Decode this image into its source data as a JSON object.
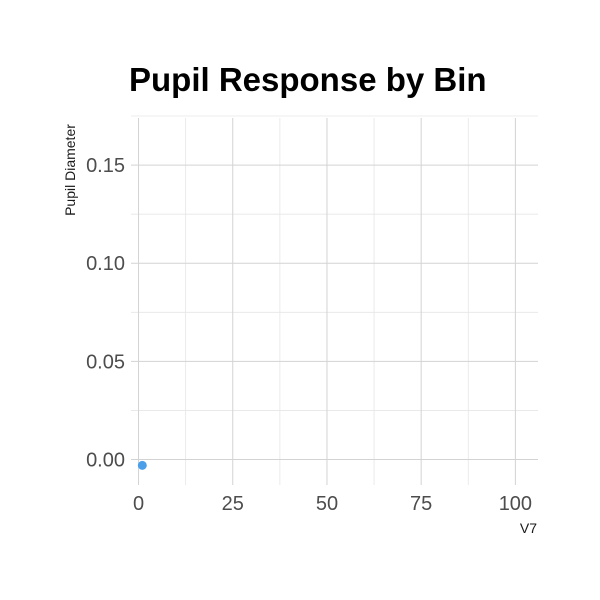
{
  "chart_data": {
    "type": "scatter",
    "title": "Pupil Response by Bin",
    "xlabel": "V7",
    "ylabel": "Pupil Diameter",
    "xlim": [
      -2,
      106
    ],
    "ylim": [
      -0.013,
      0.174
    ],
    "x_ticks": [
      0,
      25,
      50,
      75,
      100
    ],
    "y_ticks": [
      0.0,
      0.05,
      0.1,
      0.15
    ],
    "x_tick_labels": [
      "0",
      "25",
      "50",
      "75",
      "100"
    ],
    "y_tick_labels": [
      "0.00",
      "0.05",
      "0.10",
      "0.15"
    ],
    "grid": true,
    "legend": "none",
    "series": [
      {
        "color": "#4a9fe8",
        "points": [
          {
            "x": 1,
            "y": -0.003
          }
        ]
      }
    ]
  }
}
